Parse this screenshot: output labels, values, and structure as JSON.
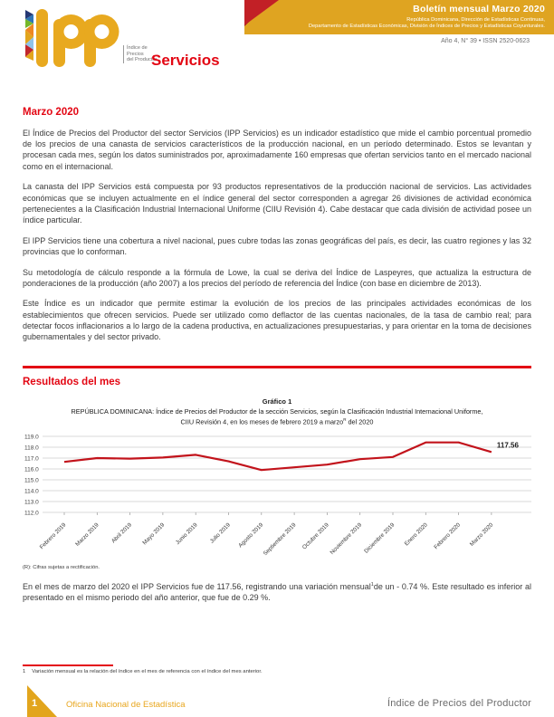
{
  "header": {
    "logo": {
      "acronym": "ipp",
      "caption": [
        "Índice de",
        "Precios",
        "del Productor"
      ],
      "gold": "#E8A91F"
    },
    "section_title": "Servicios",
    "banner": {
      "title": "Boletín mensual Marzo 2020",
      "subtitle_line1": "República Dominicana, Dirección de Estadísticas Continuas,",
      "subtitle_line2": "Departamento de Estadísticas Económicas, División de Índices de Precios y Estadísticas Coyunturales.",
      "background": "#DFA421"
    },
    "issue": "Año 4, N° 39 •  ISSN 2520-0623"
  },
  "intro": {
    "heading": "Marzo 2020",
    "paragraphs": [
      "El Índice de Precios del Productor del sector Servicios (IPP Servicios) es un indicador estadístico que mide el cambio porcentual promedio de los precios de una canasta de servicios característicos de la producción nacional, en un período determinado. Estos se levantan y procesan cada mes, según los datos suministrados por, aproximadamente 160 empresas que ofertan servicios tanto en el mercado nacional como en el internacional.",
      "La canasta del IPP Servicios está compuesta por 93 productos representativos de la producción nacional de servicios. Las actividades económicas que se incluyen actualmente en el índice general del sector corresponden a agregar 26 divisiones de actividad económica pertenecientes a la Clasificación Industrial Internacional Uniforme (CIIU Revisión 4). Cabe destacar que cada división de actividad posee un índice particular.",
      "El IPP Servicios tiene una cobertura a nivel nacional, pues cubre todas las zonas geográficas del país, es decir, las cuatro regiones y las 32 provincias que lo conforman.",
      "Su metodología de cálculo responde a la fórmula de Lowe, la cual se deriva del Índice de Laspeyres, que actualiza la estructura de ponderaciones de la producción (año 2007) a los precios del período de referencia del Índice (con base en diciembre de 2013).",
      "Este Índice es un indicador que permite estimar la evolución de los precios de las principales actividades económicas de los establecimientos que ofrecen servicios. Puede ser utilizado como deflactor de las cuentas nacionales, de la tasa de cambio real; para detectar focos inflacionarios a lo largo de la cadena productiva, en actualizaciones presupuestarias, y para orientar en la toma de decisiones gubernamentales y del sector privado."
    ]
  },
  "results": {
    "heading": "Resultados del mes",
    "analysis": {
      "pre": "En el mes de marzo del 2020 el IPP Servicios fue de 117.56, registrando una variación mensual",
      "sup": "1",
      "post": "de un - 0.74 %. Este resultado es inferior al presentado en el mismo periodo del año anterior, que fue de 0.29 %."
    }
  },
  "chart": {
    "heading": "Gráfico 1",
    "subtitle_line1": "REPÚBLICA DOMINICANA: Índice de Precios del Productor de la sección Servicios, según la Clasificación Industrial Internacional Uniforme,",
    "subtitle_line2_pre": "CIIU Revisión 4, en los meses de febrero 2019 a marzo",
    "subtitle_line2_sup": "R",
    "subtitle_line2_post": " del 2020",
    "note": "(R): Cifras sujetas a rectificación."
  },
  "chart_data": {
    "type": "line",
    "title": "Gráfico 1 — IPP Servicios, febrero 2019 a marzo 2020",
    "categories": [
      "Febrero 2019",
      "Marzo 2019",
      "Abril 2019",
      "Mayo 2019",
      "Junio 2019",
      "Julio 2019",
      "Agosto 2019",
      "Septiembre 2019",
      "Octubre 2019",
      "Noviembre 2019",
      "Diciembre 2019",
      "Enero 2020",
      "Febrero 2020",
      "Marzo 2020"
    ],
    "values": [
      116.65,
      117.0,
      116.95,
      117.05,
      117.3,
      116.7,
      115.9,
      116.15,
      116.4,
      116.9,
      117.1,
      118.44,
      118.44,
      117.56
    ],
    "ylim": [
      112,
      119
    ],
    "ytick_step": 1.0,
    "ytick_format": "one_decimal",
    "grid": true,
    "legend": false,
    "line_color": "#C2131B",
    "last_point_label": "117.56",
    "xlabel": "",
    "ylabel": ""
  },
  "footnote": {
    "marker": "1",
    "text": "Variación mensual es la relación del índice en el mes de referencia con el índice del mes anterior."
  },
  "footer": {
    "page_number": "1",
    "organization": "Oficina Nacional de Estadística",
    "publication": "Índice de Precios del Productor"
  }
}
